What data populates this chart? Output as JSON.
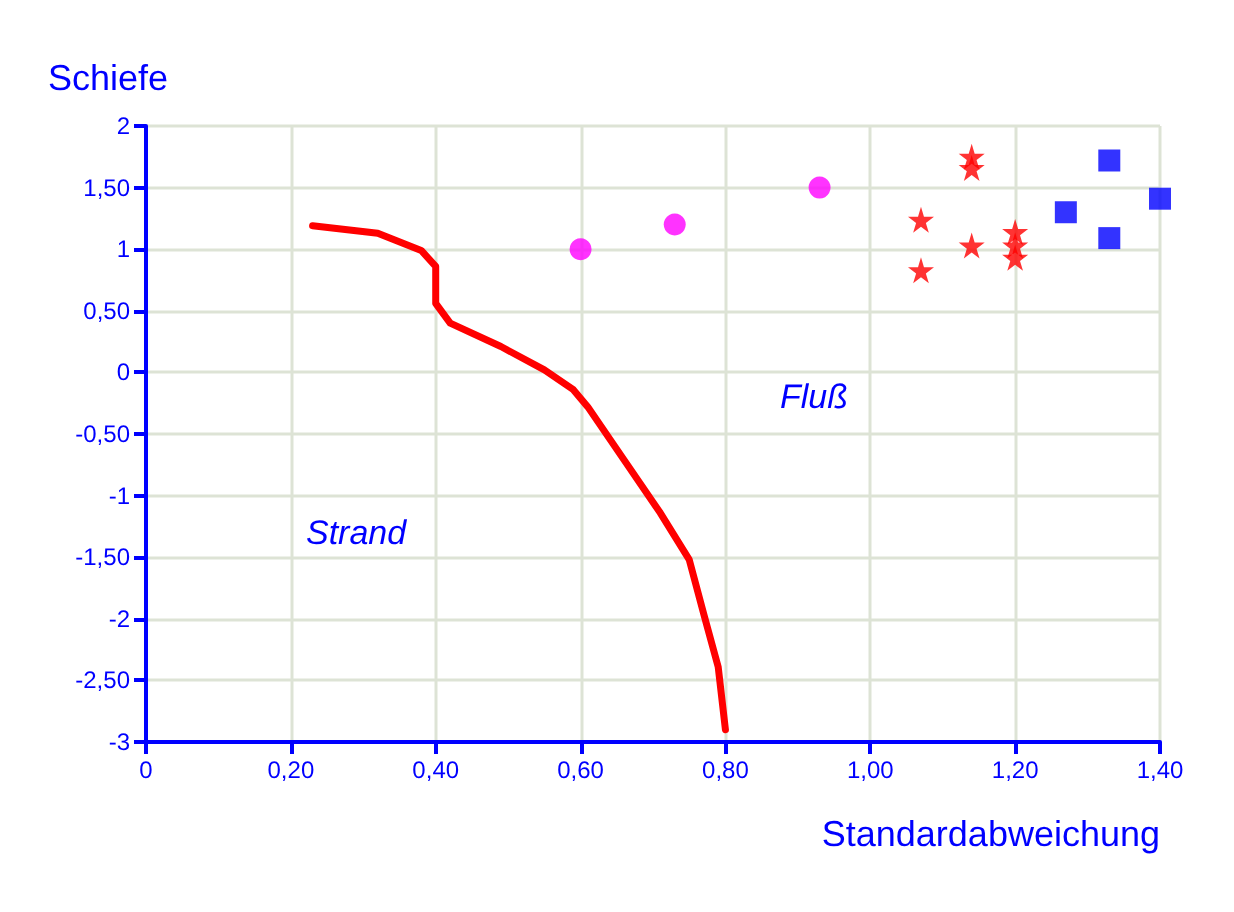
{
  "chart_data": {
    "type": "scatter",
    "xlabel": "Standardabweichung",
    "ylabel": "Schiefe",
    "xlim": [
      0,
      1.4
    ],
    "ylim": [
      -3,
      2
    ],
    "xticks": [
      0,
      {
        "value": 0.2,
        "label": "0,20"
      },
      {
        "value": 0.4,
        "label": "0,40"
      },
      {
        "value": 0.6,
        "label": "0,60"
      },
      {
        "value": 0.8,
        "label": "0,80"
      },
      {
        "value": 1,
        "label": "1,00"
      },
      {
        "value": 1.2,
        "label": "1,20"
      },
      {
        "value": 1.4,
        "label": "1,40"
      }
    ],
    "yticks": [
      -3,
      {
        "value": -2.5,
        "label": "-2,50"
      },
      -2,
      {
        "value": -1.5,
        "label": "-1,50"
      },
      -1,
      {
        "value": -0.5,
        "label": "-0,50"
      },
      0,
      {
        "value": 0.5,
        "label": "0,50"
      },
      1,
      {
        "value": 1.5,
        "label": "1,50"
      },
      2
    ],
    "grid": true,
    "series": [
      {
        "type": "line",
        "marker": "none",
        "line_style": "solid",
        "color": "#ff0000",
        "x": [
          0.23,
          0.32,
          0.38,
          0.4,
          0.4,
          0.4,
          0.42,
          0.49,
          0.55,
          0.59,
          0.61,
          0.66,
          0.71,
          0.75,
          0.77,
          0.79,
          0.8
        ],
        "values": [
          1.19,
          1.13,
          0.99,
          0.86,
          0.7,
          0.56,
          0.4,
          0.21,
          0.02,
          -0.14,
          -0.28,
          -0.71,
          -1.14,
          -1.52,
          -1.96,
          -2.39,
          -2.9
        ]
      },
      {
        "marker": "circle",
        "color": "#ff00ff",
        "x": [
          0.6,
          0.73,
          0.93
        ],
        "values": [
          1.0,
          1.2,
          1.5
        ]
      },
      {
        "marker": "star",
        "color": "#ff0000",
        "x": [
          1.14,
          1.14,
          1.07,
          1.14,
          1.07,
          1.2,
          1.2,
          1.2
        ],
        "values": [
          1.75,
          1.66,
          1.24,
          1.03,
          0.83,
          1.14,
          1.03,
          0.93
        ]
      },
      {
        "marker": "square",
        "color": "#0000ff",
        "x": [
          1.33,
          1.27,
          1.4,
          1.33
        ],
        "values": [
          1.72,
          1.3,
          1.41,
          1.09
        ]
      }
    ],
    "annotations": [
      "Fluß",
      "Strand"
    ]
  }
}
